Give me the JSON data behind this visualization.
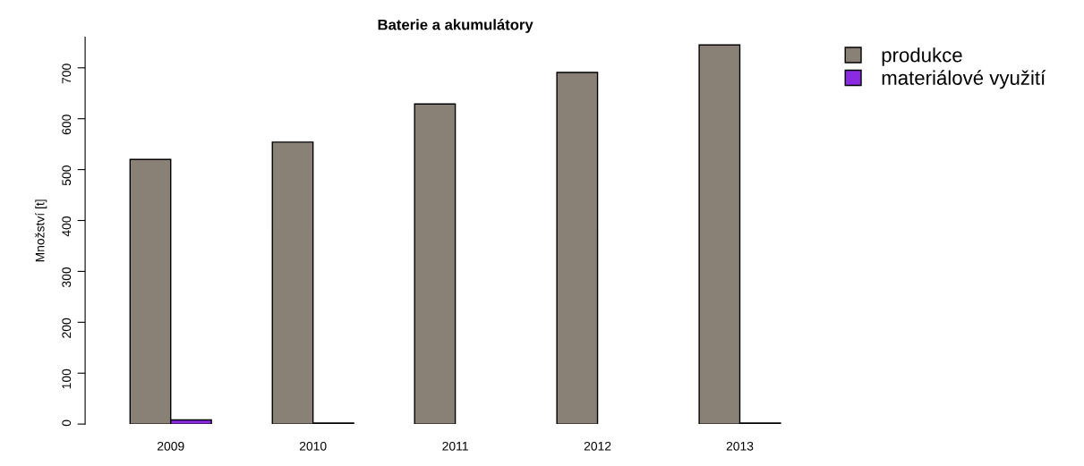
{
  "chart_data": {
    "type": "bar",
    "title": "Baterie a akumulátory",
    "ylabel": "Množství [t]",
    "categories": [
      "2009",
      "2010",
      "2011",
      "2012",
      "2013"
    ],
    "series": [
      {
        "name": "produkce",
        "color": "#8a8176",
        "values": [
          520,
          554,
          629,
          691,
          745
        ]
      },
      {
        "name": "materiálové využití",
        "color": "#8a2be2",
        "values": [
          8,
          2,
          null,
          null,
          2
        ]
      }
    ],
    "ylim": [
      0,
      760
    ],
    "yticks": [
      0,
      100,
      200,
      300,
      400,
      500,
      600,
      700
    ],
    "grid": false,
    "legend": "top right"
  }
}
